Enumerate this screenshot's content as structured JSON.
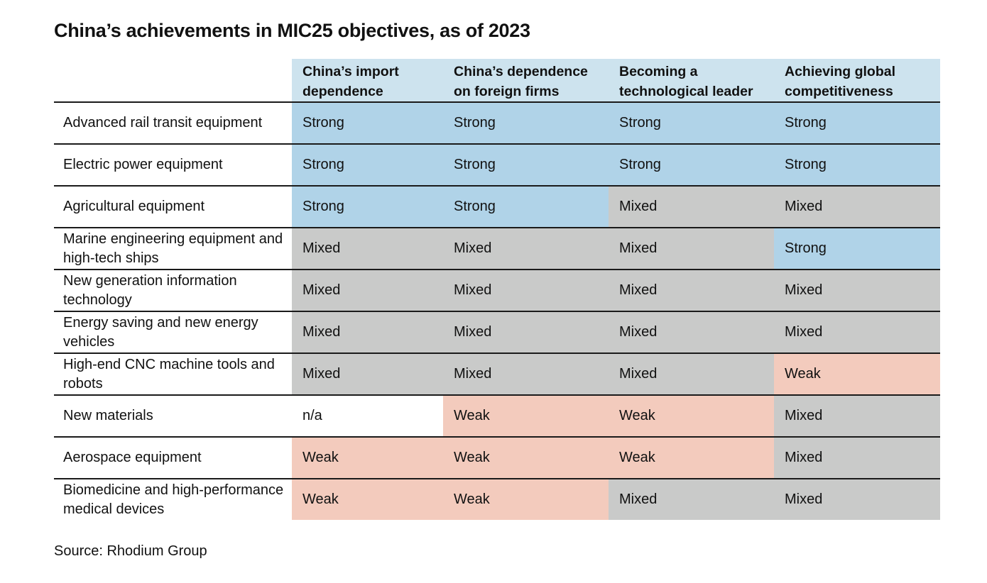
{
  "title": "China’s achievements in MIC25 objectives, as of 2023",
  "source": "Source: Rhodium Group",
  "colors": {
    "Strong": "#b0d3e8",
    "Mixed": "#c9cac9",
    "Weak": "#f3cbbd",
    "n/a": "#ffffff",
    "header_bg": "#cde3ee"
  },
  "chart_data": {
    "type": "table",
    "title": "China’s achievements in MIC25 objectives, as of 2023",
    "columns": [
      "China’s import dependence",
      "China’s dependence on foreign firms",
      "Becoming a technological leader",
      "Achieving global competitiveness"
    ],
    "rows": [
      {
        "sector": "Advanced rail transit equipment",
        "values": [
          "Strong",
          "Strong",
          "Strong",
          "Strong"
        ]
      },
      {
        "sector": "Electric power equipment",
        "values": [
          "Strong",
          "Strong",
          "Strong",
          "Strong"
        ]
      },
      {
        "sector": "Agricultural equipment",
        "values": [
          "Strong",
          "Strong",
          "Mixed",
          "Mixed"
        ]
      },
      {
        "sector": "Marine engineering equipment and high-tech ships",
        "values": [
          "Mixed",
          "Mixed",
          "Mixed",
          "Strong"
        ]
      },
      {
        "sector": "New generation information technology",
        "values": [
          "Mixed",
          "Mixed",
          "Mixed",
          "Mixed"
        ]
      },
      {
        "sector": "Energy saving and new energy vehicles",
        "values": [
          "Mixed",
          "Mixed",
          "Mixed",
          "Mixed"
        ]
      },
      {
        "sector": "High-end CNC machine tools and robots",
        "values": [
          "Mixed",
          "Mixed",
          "Mixed",
          "Weak"
        ]
      },
      {
        "sector": "New materials",
        "values": [
          "n/a",
          "Weak",
          "Weak",
          "Mixed"
        ]
      },
      {
        "sector": "Aerospace equipment",
        "values": [
          "Weak",
          "Weak",
          "Weak",
          "Mixed"
        ]
      },
      {
        "sector": "Biomedicine and high-performance medical devices",
        "values": [
          "Weak",
          "Weak",
          "Mixed",
          "Mixed"
        ]
      }
    ]
  }
}
